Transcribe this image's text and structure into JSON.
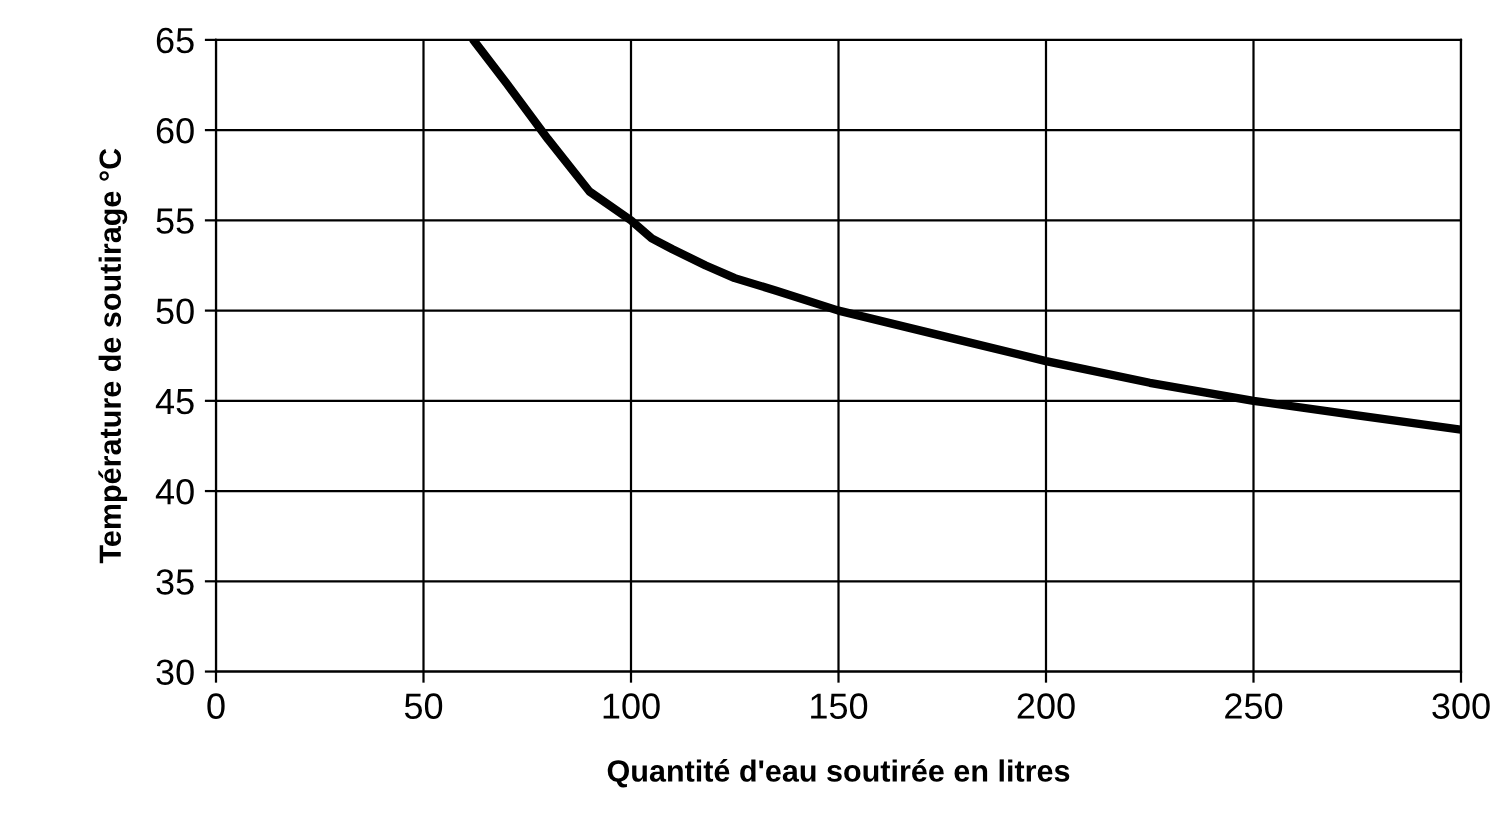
{
  "chart_data": {
    "type": "line",
    "xlabel": "Quantité d'eau soutirée en litres",
    "ylabel": "Température de soutirage °C",
    "series": [
      {
        "color": "#000000",
        "x": [
          62,
          70,
          80,
          90,
          100,
          105,
          110,
          118,
          125,
          135,
          150,
          175,
          200,
          225,
          250,
          275,
          300
        ],
        "values": [
          65,
          62.6,
          59.5,
          56.6,
          55,
          54,
          53.4,
          52.5,
          51.8,
          51.1,
          50,
          48.6,
          47.2,
          46,
          45,
          44.2,
          43.4
        ]
      }
    ],
    "xlim": [
      0,
      300
    ],
    "xticks": [
      0,
      50,
      100,
      150,
      200,
      250,
      300
    ],
    "ylim": [
      30,
      65
    ],
    "yticks": [
      30,
      35,
      40,
      45,
      50,
      55,
      60,
      65
    ],
    "grid": true,
    "legend": false,
    "marker": "none",
    "line_style": "solid"
  }
}
